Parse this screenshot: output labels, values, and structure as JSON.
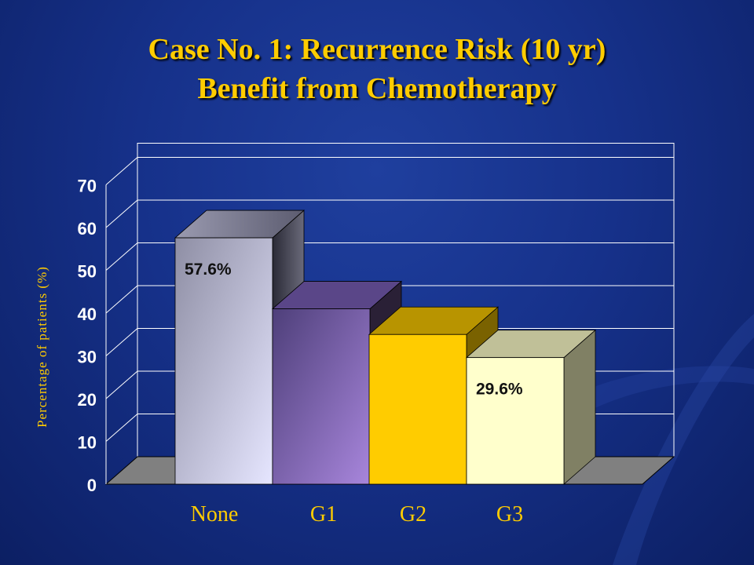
{
  "title": {
    "line1": "Case No. 1: Recurrence Risk (10 yr)",
    "line2": "Benefit from Chemotherapy"
  },
  "colors": {
    "title": "#ffcc00",
    "background": "#16318a",
    "bar_none": "#c8c8e0",
    "bar_g1": "#8a70c0",
    "bar_g2": "#ffcc00",
    "bar_g3": "#ffffcc"
  },
  "chart_data": {
    "type": "bar",
    "categories": [
      "None",
      "G1",
      "G2",
      "G3"
    ],
    "values": [
      57.6,
      41,
      35,
      29.6
    ],
    "data_labels": [
      "57.6%",
      "",
      "",
      "29.6%"
    ],
    "ylabel": "Percentage of patients (%)",
    "ylim": [
      0,
      70
    ],
    "yticks": [
      "0",
      "10",
      "20",
      "30",
      "40",
      "50",
      "60",
      "70"
    ],
    "grid": true,
    "style": "3d-column"
  }
}
